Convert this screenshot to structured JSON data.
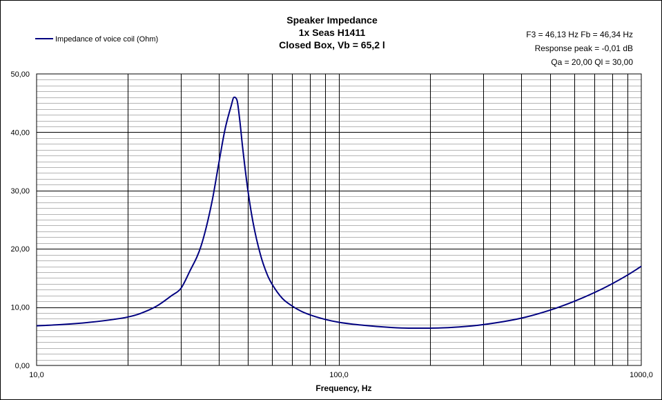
{
  "chart_data": {
    "type": "line",
    "title": [
      "Speaker Impedance",
      "1x Seas H1411",
      "Closed Box, Vb = 65,2 l"
    ],
    "info": [
      "F3 = 46,13 Hz  Fb = 46,34 Hz",
      "Response peak = -0,01 dB",
      "Qa = 20,00  Ql = 30,00"
    ],
    "xlabel": "Frequency, Hz",
    "ylabel": "",
    "x_scale": "log",
    "xlim": [
      10,
      1000
    ],
    "ylim": [
      0,
      50
    ],
    "x_ticks": [
      {
        "value": 10,
        "label": "10,0"
      },
      {
        "value": 100,
        "label": "100,0"
      },
      {
        "value": 1000,
        "label": "1000,0"
      }
    ],
    "y_ticks": [
      {
        "value": 0,
        "label": "0,00"
      },
      {
        "value": 10,
        "label": "10,00"
      },
      {
        "value": 20,
        "label": "20,00"
      },
      {
        "value": 30,
        "label": "30,00"
      },
      {
        "value": 40,
        "label": "40,00"
      },
      {
        "value": 50,
        "label": "50,00"
      }
    ],
    "grid": {
      "x_major": true,
      "y_major": true,
      "y_minor": true,
      "y_minor_step": 1
    },
    "legend": {
      "placement": "top-left"
    },
    "series_color": "#000080",
    "series": [
      {
        "name": "Impedance of voice coil (Ohm)",
        "x": [
          10,
          12,
          15,
          18,
          20,
          22,
          25,
          28,
          30,
          32,
          35,
          38,
          40,
          42,
          44,
          45,
          46,
          47,
          48,
          50,
          52,
          55,
          58,
          60,
          65,
          70,
          75,
          80,
          90,
          100,
          120,
          150,
          170,
          200,
          250,
          300,
          400,
          500,
          600,
          700,
          800,
          900,
          1000
        ],
        "values": [
          6.8,
          7.0,
          7.4,
          7.9,
          8.3,
          8.9,
          10.2,
          12.0,
          13.2,
          16.0,
          20.5,
          28.0,
          34.5,
          40.5,
          44.5,
          46.0,
          45.5,
          42.0,
          37.5,
          30.0,
          24.5,
          19.0,
          15.5,
          14.0,
          11.5,
          10.2,
          9.3,
          8.7,
          7.9,
          7.4,
          6.9,
          6.5,
          6.4,
          6.4,
          6.6,
          7.0,
          8.1,
          9.5,
          11.0,
          12.5,
          14.0,
          15.5,
          17.0
        ]
      }
    ]
  }
}
